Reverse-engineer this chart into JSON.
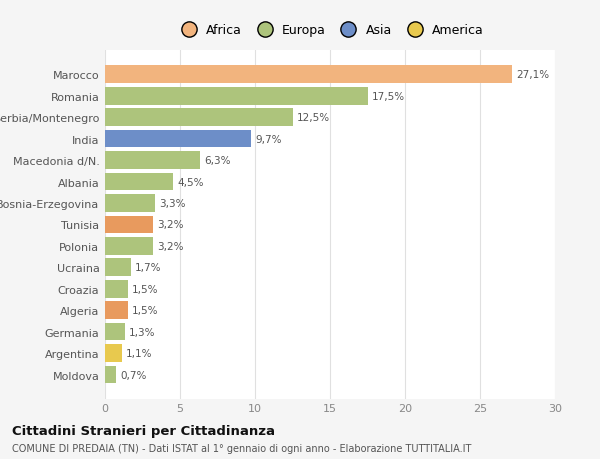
{
  "categories": [
    "Moldova",
    "Argentina",
    "Germania",
    "Algeria",
    "Croazia",
    "Ucraina",
    "Polonia",
    "Tunisia",
    "Bosnia-Erzegovina",
    "Albania",
    "Macedonia d/N.",
    "India",
    "Serbia/Montenegro",
    "Romania",
    "Marocco"
  ],
  "values": [
    0.7,
    1.1,
    1.3,
    1.5,
    1.5,
    1.7,
    3.2,
    3.2,
    3.3,
    4.5,
    6.3,
    9.7,
    12.5,
    17.5,
    27.1
  ],
  "labels": [
    "0,7%",
    "1,1%",
    "1,3%",
    "1,5%",
    "1,5%",
    "1,7%",
    "3,2%",
    "3,2%",
    "3,3%",
    "4,5%",
    "6,3%",
    "9,7%",
    "12,5%",
    "17,5%",
    "27,1%"
  ],
  "colors": [
    "#adc47c",
    "#e8c94e",
    "#adc47c",
    "#e89a5e",
    "#adc47c",
    "#adc47c",
    "#adc47c",
    "#e89a5e",
    "#adc47c",
    "#adc47c",
    "#adc47c",
    "#6d8ec8",
    "#adc47c",
    "#adc47c",
    "#f2b47e"
  ],
  "legend_labels": [
    "Africa",
    "Europa",
    "Asia",
    "America"
  ],
  "legend_colors": [
    "#f2b47e",
    "#adc47c",
    "#6d8ec8",
    "#e8c94e"
  ],
  "title": "Cittadini Stranieri per Cittadinanza",
  "subtitle": "COMUNE DI PREDAIA (TN) - Dati ISTAT al 1° gennaio di ogni anno - Elaborazione TUTTITALIA.IT",
  "xlim": [
    0,
    30
  ],
  "xticks": [
    0,
    5,
    10,
    15,
    20,
    25,
    30
  ],
  "background_color": "#f5f5f5",
  "plot_background": "#ffffff",
  "grid_color": "#e0e0e0",
  "bar_height": 0.82
}
